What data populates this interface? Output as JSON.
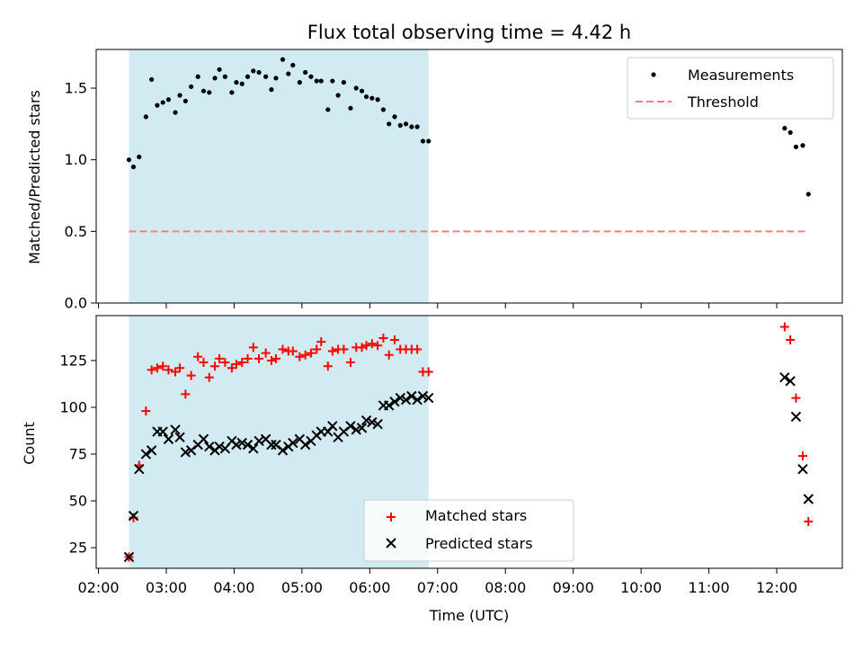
{
  "chart_data": {
    "title": "Flux total observing time = 4.42 h",
    "xlabel": "Time (UTC)",
    "x_ticks": [
      "02:00",
      "03:00",
      "04:00",
      "05:00",
      "06:00",
      "07:00",
      "08:00",
      "09:00",
      "10:00",
      "11:00",
      "12:00"
    ],
    "xlim": [
      "01:58",
      "12:58"
    ],
    "shaded_interval": [
      "02:27",
      "06:52"
    ],
    "colors": {
      "shade": "#add8e6",
      "matched": "#ff0000",
      "predicted": "#000000",
      "threshold": "#ff7f7f",
      "measurements": "#000000"
    },
    "panels": [
      {
        "type": "scatter",
        "ylabel": "Matched/Predicted stars",
        "ylim": [
          0,
          1.77
        ],
        "y_ticks": [
          "0.0",
          "0.5",
          "1.0",
          "1.5"
        ],
        "y_tick_values": [
          0,
          0.5,
          1.0,
          1.5
        ],
        "legend": {
          "position": "top-right",
          "entries": [
            "Measurements",
            "Threshold"
          ]
        },
        "threshold": {
          "name": "Threshold",
          "value": 0.5,
          "x_range": [
            "02:27",
            "12:28"
          ]
        },
        "series": [
          {
            "name": "Measurements",
            "x": [
              "02:27",
              "02:31",
              "02:36",
              "02:42",
              "02:47",
              "02:52",
              "02:57",
              "03:02",
              "03:08",
              "03:12",
              "03:17",
              "03:22",
              "03:28",
              "03:33",
              "03:38",
              "03:43",
              "03:47",
              "03:52",
              "03:58",
              "04:02",
              "04:07",
              "04:12",
              "04:17",
              "04:22",
              "04:28",
              "04:33",
              "04:37",
              "04:43",
              "04:48",
              "04:52",
              "04:58",
              "05:03",
              "05:08",
              "05:13",
              "05:17",
              "05:23",
              "05:27",
              "05:32",
              "05:37",
              "05:43",
              "05:48",
              "05:53",
              "05:57",
              "06:02",
              "06:07",
              "06:12",
              "06:17",
              "06:22",
              "06:27",
              "06:32",
              "06:37",
              "06:42",
              "06:47",
              "06:52",
              "12:07",
              "12:12",
              "12:17",
              "12:23",
              "12:28"
            ],
            "values": [
              1.0,
              0.95,
              1.02,
              1.3,
              1.56,
              1.38,
              1.4,
              1.42,
              1.33,
              1.45,
              1.41,
              1.51,
              1.58,
              1.48,
              1.47,
              1.57,
              1.63,
              1.58,
              1.47,
              1.54,
              1.53,
              1.58,
              1.62,
              1.61,
              1.58,
              1.49,
              1.57,
              1.7,
              1.6,
              1.66,
              1.54,
              1.61,
              1.58,
              1.55,
              1.55,
              1.35,
              1.55,
              1.45,
              1.54,
              1.36,
              1.5,
              1.48,
              1.44,
              1.43,
              1.42,
              1.35,
              1.25,
              1.3,
              1.24,
              1.25,
              1.23,
              1.23,
              1.13,
              1.13,
              1.22,
              1.19,
              1.09,
              1.1,
              0.76
            ]
          }
        ]
      },
      {
        "type": "scatter",
        "ylabel": "Count",
        "ylim": [
          14,
          149
        ],
        "y_ticks": [
          "25",
          "50",
          "75",
          "100",
          "125"
        ],
        "y_tick_values": [
          25,
          50,
          75,
          100,
          125
        ],
        "legend": {
          "position": "bottom-center",
          "entries": [
            "Matched stars",
            "Predicted stars"
          ]
        },
        "series": [
          {
            "name": "Matched stars",
            "x": [
              "02:27",
              "02:31",
              "02:36",
              "02:42",
              "02:47",
              "02:52",
              "02:57",
              "03:02",
              "03:08",
              "03:12",
              "03:17",
              "03:22",
              "03:28",
              "03:33",
              "03:38",
              "03:43",
              "03:47",
              "03:52",
              "03:58",
              "04:02",
              "04:07",
              "04:12",
              "04:17",
              "04:22",
              "04:28",
              "04:33",
              "04:37",
              "04:43",
              "04:48",
              "04:52",
              "04:58",
              "05:03",
              "05:08",
              "05:13",
              "05:17",
              "05:23",
              "05:27",
              "05:32",
              "05:37",
              "05:43",
              "05:48",
              "05:53",
              "05:57",
              "06:02",
              "06:07",
              "06:12",
              "06:17",
              "06:22",
              "06:27",
              "06:32",
              "06:37",
              "06:42",
              "06:47",
              "06:52",
              "12:07",
              "12:12",
              "12:17",
              "12:23",
              "12:28"
            ],
            "values": [
              20,
              41,
              69,
              98,
              120,
              121,
              122,
              120,
              119,
              121,
              107,
              117,
              127,
              124,
              116,
              122,
              126,
              124,
              121,
              123,
              124,
              126,
              132,
              126,
              129,
              125,
              126,
              131,
              130,
              130,
              127,
              128,
              129,
              131,
              135,
              122,
              130,
              131,
              131,
              124,
              132,
              132,
              133,
              134,
              133,
              137,
              128,
              136,
              131,
              131,
              131,
              131,
              119,
              119,
              143,
              136,
              105,
              74,
              39
            ]
          },
          {
            "name": "Predicted stars",
            "x": [
              "02:27",
              "02:31",
              "02:36",
              "02:42",
              "02:47",
              "02:52",
              "02:57",
              "03:02",
              "03:08",
              "03:12",
              "03:17",
              "03:22",
              "03:28",
              "03:33",
              "03:38",
              "03:43",
              "03:47",
              "03:52",
              "03:58",
              "04:02",
              "04:07",
              "04:12",
              "04:17",
              "04:22",
              "04:28",
              "04:33",
              "04:37",
              "04:43",
              "04:48",
              "04:52",
              "04:58",
              "05:03",
              "05:08",
              "05:13",
              "05:17",
              "05:23",
              "05:27",
              "05:32",
              "05:37",
              "05:43",
              "05:48",
              "05:53",
              "05:57",
              "06:02",
              "06:07",
              "06:12",
              "06:17",
              "06:22",
              "06:27",
              "06:32",
              "06:37",
              "06:42",
              "06:47",
              "06:52",
              "12:07",
              "12:12",
              "12:17",
              "12:23",
              "12:28"
            ],
            "values": [
              20,
              42,
              67,
              75,
              77,
              87,
              87,
              83,
              88,
              84,
              76,
              77,
              80,
              83,
              79,
              77,
              79,
              78,
              82,
              80,
              81,
              80,
              78,
              82,
              83,
              80,
              80,
              77,
              79,
              81,
              83,
              80,
              82,
              85,
              87,
              87,
              90,
              84,
              87,
              90,
              88,
              89,
              93,
              92,
              91,
              101,
              101,
              103,
              105,
              104,
              106,
              104,
              106,
              105,
              116,
              114,
              95,
              67,
              51
            ]
          }
        ]
      }
    ]
  }
}
